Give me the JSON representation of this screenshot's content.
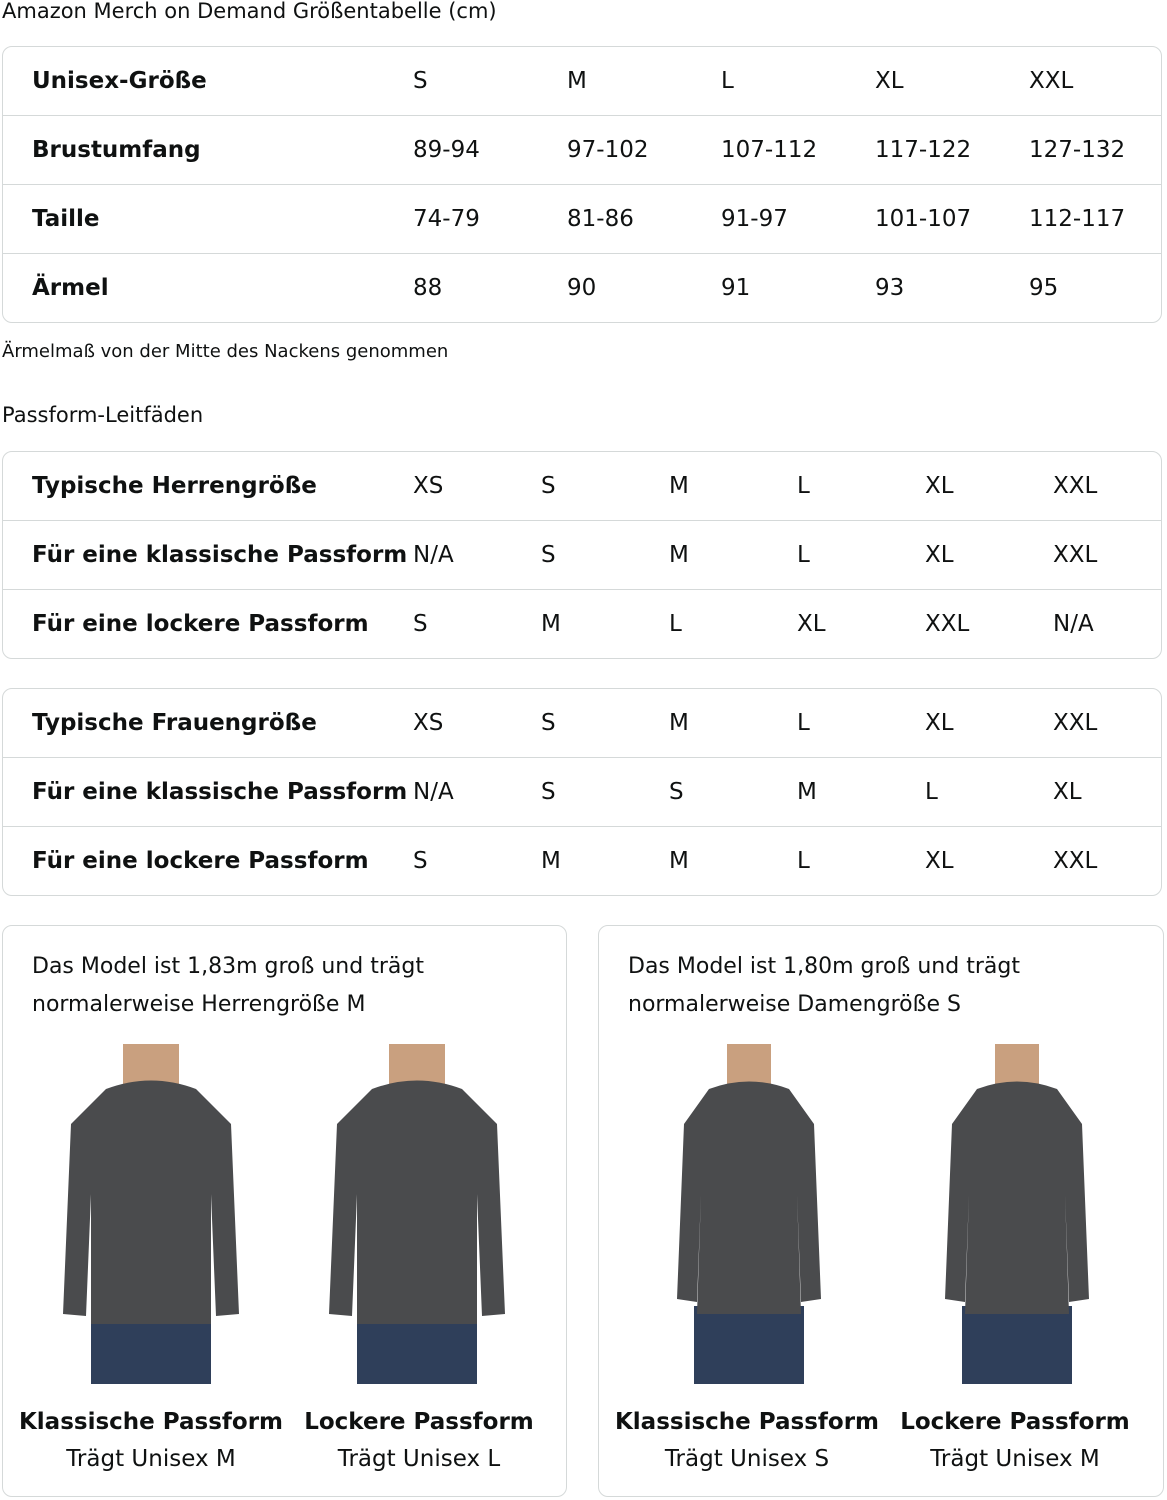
{
  "title": "Amazon Merch on Demand Größentabelle (cm)",
  "unisex_table": {
    "rows": [
      [
        "Unisex-Größe",
        "S",
        "M",
        "L",
        "XL",
        "XXL"
      ],
      [
        "Brustumfang",
        "89-94",
        "97-102",
        "107-112",
        "117-122",
        "127-132"
      ],
      [
        "Taille",
        "74-79",
        "81-86",
        "91-97",
        "101-107",
        "112-117"
      ],
      [
        "Ärmel",
        "88",
        "90",
        "91",
        "93",
        "95"
      ]
    ]
  },
  "note": "Ärmelmaß von der Mitte des Nackens genommen",
  "fit_title": "Passform-Leitfäden",
  "men_table": {
    "rows": [
      [
        "Typische Herrengröße",
        "XS",
        "S",
        "M",
        "L",
        "XL",
        "XXL"
      ],
      [
        "Für eine klassische Passform",
        "N/A",
        "S",
        "M",
        "L",
        "XL",
        "XXL"
      ],
      [
        "Für eine lockere Passform",
        "S",
        "M",
        "L",
        "XL",
        "XXL",
        "N/A"
      ]
    ]
  },
  "women_table": {
    "rows": [
      [
        "Typische Frauengröße",
        "XS",
        "S",
        "M",
        "L",
        "XL",
        "XXL"
      ],
      [
        "Für eine klassische Passform",
        "N/A",
        "S",
        "S",
        "M",
        "L",
        "XL"
      ],
      [
        "Für eine lockere Passform",
        "S",
        "M",
        "M",
        "L",
        "XL",
        "XXL"
      ]
    ]
  },
  "cards": [
    {
      "desc_line1": "Das Model ist 1,83m groß und trägt",
      "desc_line2": "normalerweise Herrengröße M",
      "models": [
        {
          "fit": "Klassische Passform",
          "size": "Trägt Unisex M"
        },
        {
          "fit": "Lockere Passform",
          "size": "Trägt Unisex L"
        }
      ]
    },
    {
      "desc_line1": "Das Model ist 1,80m groß und trägt",
      "desc_line2": "normalerweise Damengröße S",
      "models": [
        {
          "fit": "Klassische Passform",
          "size": "Trägt Unisex S"
        },
        {
          "fit": "Lockere Passform",
          "size": "Trägt Unisex M"
        }
      ]
    }
  ],
  "colors": {
    "border": "#d5d9d9",
    "shirt": "#4a4b4d",
    "jeans": "#2f3f5a",
    "skin": "#c9a07f"
  }
}
